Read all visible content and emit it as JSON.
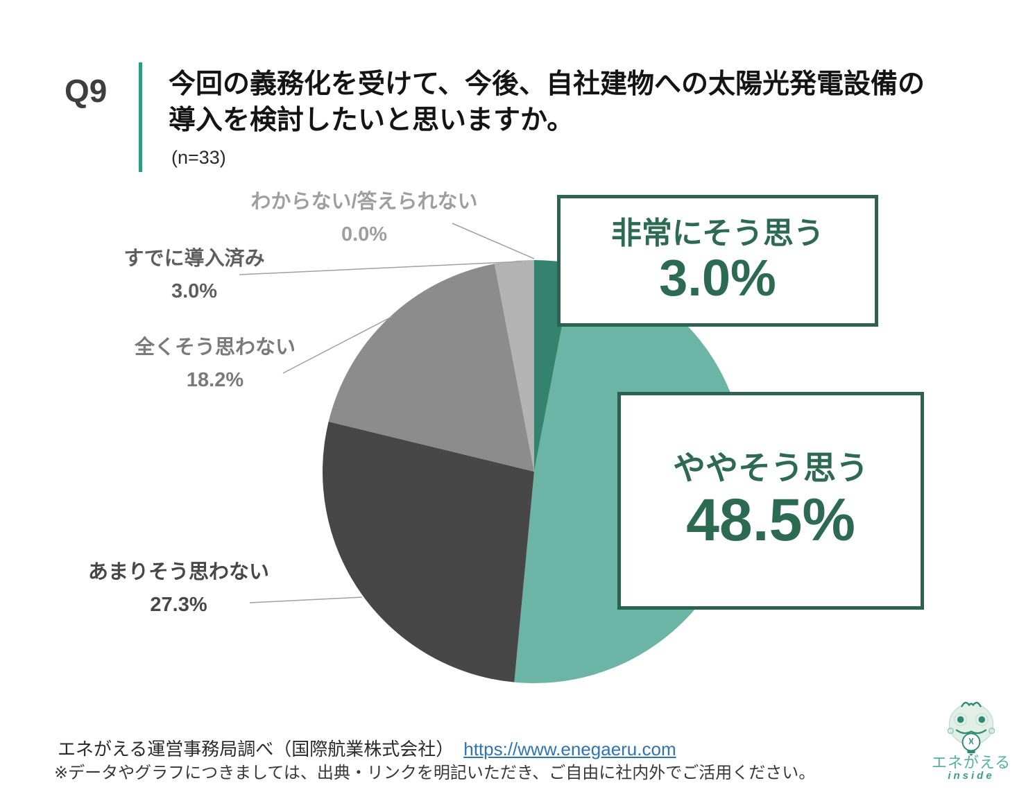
{
  "header": {
    "q_label": "Q9",
    "title_line1": "今回の義務化を受けて、今後、自社建物への太陽光発電設備の",
    "title_line2": "導入を検討したいと思いますか。",
    "sample_size": "(n=33)"
  },
  "chart_data": {
    "type": "pie",
    "title": "今回の義務化を受けて、今後、自社建物への太陽光発電設備の導入を検討したいと思いますか。",
    "sample_n": 33,
    "unit": "%",
    "direction": "clockwise",
    "start_angle_deg": 0,
    "legend_position": "callout-boxes-and-leader-line-labels",
    "categories": [
      "非常にそう思う",
      "ややそう思う",
      "あまりそう思わない",
      "全くそう思わない",
      "すでに導入済み",
      "わからない/答えられない"
    ],
    "values": [
      3.0,
      48.5,
      27.3,
      18.2,
      3.0,
      0.0
    ],
    "colors": [
      "#35826E",
      "#6BB4A6",
      "#474747",
      "#8C8C8C",
      "#B3B3B3",
      "#CCCCCC"
    ]
  },
  "callouts": [
    {
      "label": "非常にそう思う",
      "value": "3.0%"
    },
    {
      "label": "ややそう思う",
      "value": "48.5%"
    }
  ],
  "side_labels": [
    {
      "label": "わからない/答えられない",
      "value": "0.0%",
      "color": "#9E9E9E"
    },
    {
      "label": "すでに導入済み",
      "value": "3.0%",
      "color": "#5E5E5E"
    },
    {
      "label": "全くそう思わない",
      "value": "18.2%",
      "color": "#7A7A7A"
    },
    {
      "label": "あまりそう思わない",
      "value": "27.3%",
      "color": "#474747"
    }
  ],
  "footer": {
    "source": "エネがえる運営事務局調べ（国際航業株式会社）",
    "link": "https://www.enegaeru.com",
    "note": "※データやグラフにつきましては、出典・リンクを明記いただき、ご自由に社内外でご活用ください。"
  },
  "logo": {
    "brand": "エネがえる",
    "sub": "inside"
  },
  "colors": {
    "accent_green": "#2D6A52",
    "box_border": "#2C6350",
    "header_bar_teal": "#2E9B85",
    "link_blue": "#2E74B5",
    "leader_line_gray": "#A0A0A0"
  }
}
